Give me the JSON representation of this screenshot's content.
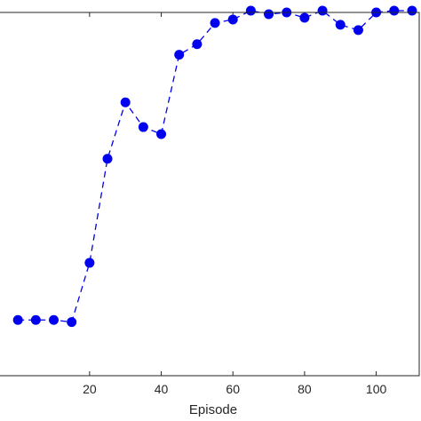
{
  "chart_data": {
    "type": "line",
    "xlabel": "Episode",
    "ylabel": "",
    "xlim": [
      -5,
      112
    ],
    "ylim": [
      0,
      1.03
    ],
    "grid": false,
    "line_style": "dashed",
    "marker": "circle",
    "color": "#0000ee",
    "x_ticks": [
      20,
      40,
      60,
      80,
      100
    ],
    "series": [
      {
        "x": [
          0,
          5,
          10,
          15,
          20,
          25,
          30,
          35,
          40,
          45,
          50,
          55,
          60,
          65,
          70,
          75,
          80,
          85,
          90,
          95,
          100,
          105,
          110
        ],
        "y": [
          0.158,
          0.158,
          0.158,
          0.152,
          0.32,
          0.615,
          0.775,
          0.705,
          0.685,
          0.91,
          0.94,
          1.0,
          1.01,
          1.035,
          1.025,
          1.03,
          1.015,
          1.035,
          0.995,
          0.98,
          1.03,
          1.035,
          1.035
        ]
      }
    ]
  }
}
